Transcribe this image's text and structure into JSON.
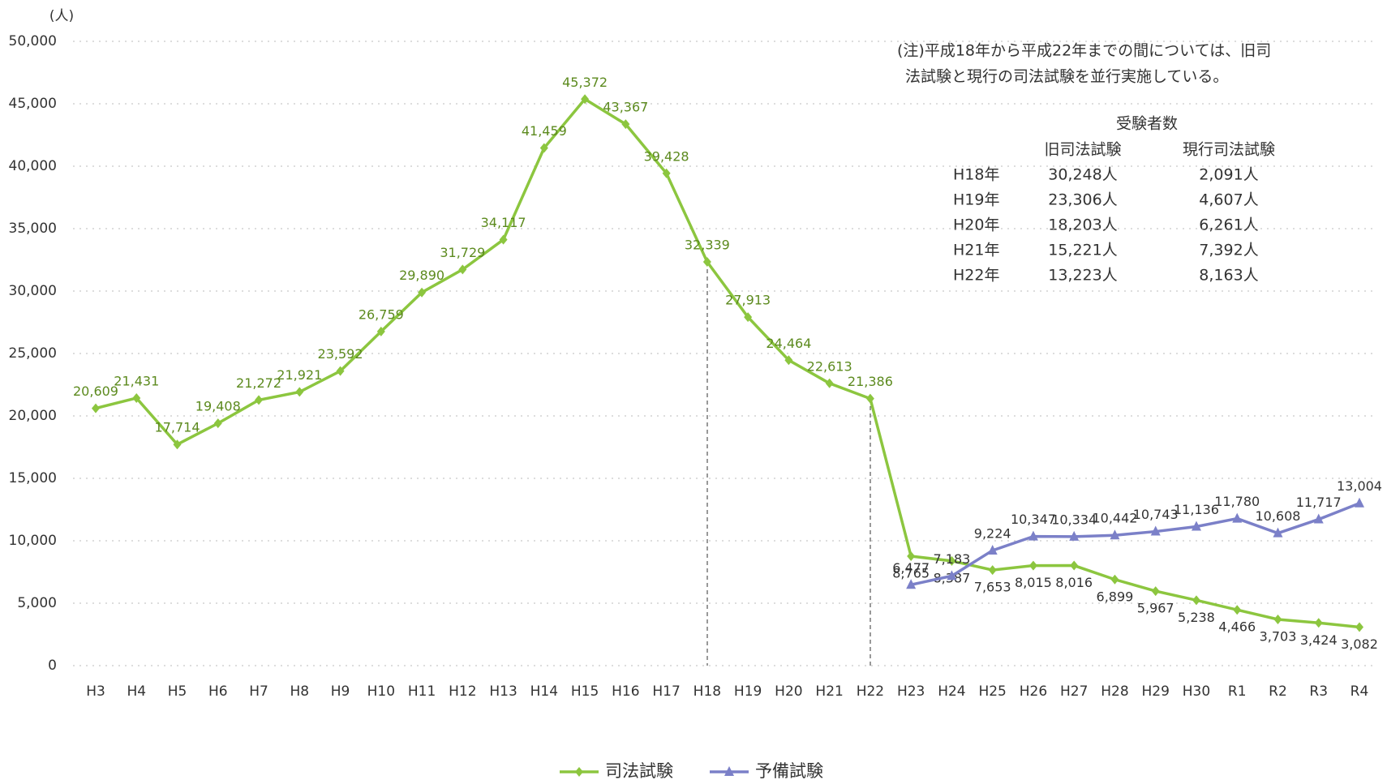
{
  "chart_data": {
    "type": "line",
    "y_unit": "(人)",
    "categories": [
      "H3",
      "H4",
      "H5",
      "H6",
      "H7",
      "H8",
      "H9",
      "H10",
      "H11",
      "H12",
      "H13",
      "H14",
      "H15",
      "H16",
      "H17",
      "H18",
      "H19",
      "H20",
      "H21",
      "H22",
      "H23",
      "H24",
      "H25",
      "H26",
      "H27",
      "H28",
      "H29",
      "H30",
      "R1",
      "R2",
      "R3",
      "R4"
    ],
    "series": [
      {
        "name": "司法試験",
        "color": "#8cc63f",
        "marker": "diamond",
        "values": [
          20609,
          21431,
          17714,
          19408,
          21272,
          21921,
          23592,
          26759,
          29890,
          31729,
          34117,
          41459,
          45372,
          43367,
          39428,
          32339,
          27913,
          24464,
          22613,
          21386,
          8765,
          8387,
          7653,
          8015,
          8016,
          6899,
          5967,
          5238,
          4466,
          3703,
          3424,
          3082
        ],
        "value_labels": [
          "20,609",
          "21,431",
          "17,714",
          "19,408",
          "21,272",
          "21,921",
          "23,592",
          "26,759",
          "29,890",
          "31,729",
          "34,117",
          "41,459",
          "45,372",
          "43,367",
          "39,428",
          "32,339",
          "27,913",
          "24,464",
          "22,613",
          "21,386",
          "8,765",
          "8,387",
          "7,653",
          "8,015",
          "8,016",
          "6,899",
          "5,967",
          "5,238",
          "4,466",
          "3,703",
          "3,424",
          "3,082"
        ]
      },
      {
        "name": "予備試験",
        "color": "#7b80c8",
        "marker": "triangle",
        "values": [
          null,
          null,
          null,
          null,
          null,
          null,
          null,
          null,
          null,
          null,
          null,
          null,
          null,
          null,
          null,
          null,
          null,
          null,
          null,
          null,
          6477,
          7183,
          9224,
          10347,
          10334,
          10442,
          10743,
          11136,
          11780,
          10608,
          11717,
          13004
        ],
        "value_labels": [
          null,
          null,
          null,
          null,
          null,
          null,
          null,
          null,
          null,
          null,
          null,
          null,
          null,
          null,
          null,
          null,
          null,
          null,
          null,
          null,
          "6,477",
          "7,183",
          "9,224",
          "10,347",
          "10,334",
          "10,442",
          "10,743",
          "11,136",
          "11,780",
          "10,608",
          "11,717",
          "13,004"
        ]
      }
    ],
    "ylim": [
      0,
      50000
    ],
    "yticks": [
      0,
      {
        "value": 5000,
        "label": "5,000"
      },
      {
        "value": 10000,
        "label": "10,000"
      },
      {
        "value": 15000,
        "label": "15,000"
      },
      {
        "value": 20000,
        "label": "20,000"
      },
      {
        "value": 25000,
        "label": "25,000"
      },
      {
        "value": 30000,
        "label": "30,000"
      },
      {
        "value": 35000,
        "label": "35,000"
      },
      {
        "value": 40000,
        "label": "40,000"
      },
      {
        "value": 45000,
        "label": "45,000"
      },
      {
        "value": 50000,
        "label": "50,000"
      }
    ],
    "grid": true,
    "legend": "bottom",
    "note": [
      "(注)平成18年から平成22年までの間については、旧司",
      "法試験と現行の司法試験を並行実施している。"
    ],
    "table": {
      "title": "受験者数",
      "columns": [
        "旧司法試験",
        "現行司法試験"
      ],
      "rows": [
        [
          "H18年",
          "30,248人",
          "2,091人"
        ],
        [
          "H19年",
          "23,306人",
          "4,607人"
        ],
        [
          "H20年",
          "18,203人",
          "6,261人"
        ],
        [
          "H21年",
          "15,221人",
          "7,392人"
        ],
        [
          "H22年",
          "13,223人",
          "8,163人"
        ]
      ]
    }
  }
}
